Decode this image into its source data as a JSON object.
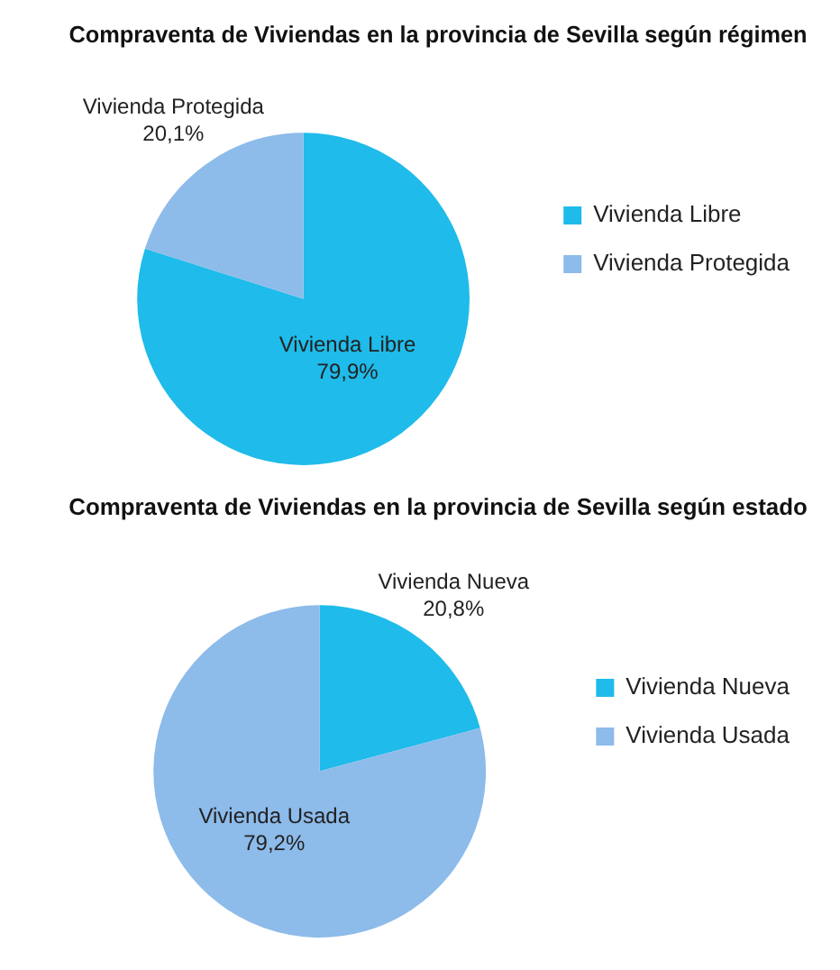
{
  "chart_data": [
    {
      "type": "pie",
      "title": "Compraventa de Viviendas en la provincia de Sevilla según régimen",
      "categories": [
        "Vivienda Libre",
        "Vivienda Protegida"
      ],
      "values": [
        79.9,
        20.1
      ],
      "colors": [
        "#1fbbea",
        "#8dbbea"
      ],
      "value_labels": [
        "79,9%",
        "20,1%"
      ],
      "legend": "right"
    },
    {
      "type": "pie",
      "title": "Compraventa de Viviendas en la provincia de Sevilla según estado",
      "categories": [
        "Vivienda Nueva",
        "Vivienda Usada"
      ],
      "values": [
        20.8,
        79.2
      ],
      "colors": [
        "#1fbbea",
        "#8dbbea"
      ],
      "value_labels": [
        "20,8%",
        "79,2%"
      ],
      "legend": "right"
    }
  ]
}
